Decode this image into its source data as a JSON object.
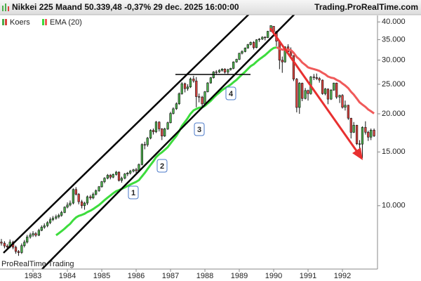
{
  "chart_data": {
    "type": "candlestick",
    "title": "Nikkei 225 Maand 50.339,48 -0,37% 29 dec. 2025 16:00:00",
    "source": "Trading.ProRealTime.com",
    "watermark": "ProRealTime Trading",
    "annotations": [
      "1",
      "2",
      "3",
      "4"
    ],
    "log_scale": true,
    "grid": false,
    "xlim": [
      1982.04,
      1993.02
    ],
    "xticks": [
      1983,
      1984,
      1985,
      1986,
      1987,
      1988,
      1989,
      1990,
      1991,
      1992
    ],
    "ylim": [
      6200,
      42000
    ],
    "yticks": [
      {
        "value": 10000,
        "label": "10.000"
      },
      {
        "value": 15000,
        "label": "15.000"
      },
      {
        "value": 20000,
        "label": "20.000"
      },
      {
        "value": 25000,
        "label": "25.000"
      },
      {
        "value": 30000,
        "label": "30.000"
      },
      {
        "value": 35000,
        "label": "35.000"
      },
      {
        "value": 40000,
        "label": "40.000"
      }
    ],
    "x": [
      1982.08,
      1982.17,
      1982.25,
      1982.33,
      1982.42,
      1982.5,
      1982.58,
      1982.67,
      1982.75,
      1982.83,
      1982.92,
      1983,
      1983.08,
      1983.17,
      1983.25,
      1983.33,
      1983.42,
      1983.5,
      1983.58,
      1983.67,
      1983.75,
      1983.83,
      1983.92,
      1984,
      1984.08,
      1984.17,
      1984.25,
      1984.33,
      1984.42,
      1984.5,
      1984.58,
      1984.67,
      1984.75,
      1984.83,
      1984.92,
      1985,
      1985.08,
      1985.17,
      1985.25,
      1985.33,
      1985.42,
      1985.5,
      1985.58,
      1985.67,
      1985.75,
      1985.83,
      1985.92,
      1986,
      1986.08,
      1986.17,
      1986.25,
      1986.33,
      1986.42,
      1986.5,
      1986.58,
      1986.67,
      1986.75,
      1986.83,
      1986.92,
      1987,
      1987.08,
      1987.17,
      1987.25,
      1987.33,
      1987.42,
      1987.5,
      1987.58,
      1987.67,
      1987.75,
      1987.83,
      1987.92,
      1988,
      1988.08,
      1988.17,
      1988.25,
      1988.33,
      1988.42,
      1988.5,
      1988.58,
      1988.67,
      1988.75,
      1988.83,
      1988.92,
      1989,
      1989.08,
      1989.17,
      1989.25,
      1989.33,
      1989.42,
      1989.5,
      1989.58,
      1989.67,
      1989.75,
      1989.83,
      1989.92,
      1990,
      1990.08,
      1990.17,
      1990.25,
      1990.33,
      1990.42,
      1990.5,
      1990.58,
      1990.67,
      1990.75,
      1990.83,
      1990.92,
      1991,
      1991.08,
      1991.17,
      1991.25,
      1991.33,
      1991.42,
      1991.5,
      1991.58,
      1991.67,
      1991.75,
      1991.83,
      1991.92,
      1992,
      1992.08,
      1992.17,
      1992.25,
      1992.33,
      1992.42,
      1992.5,
      1992.58,
      1992.67,
      1992.75,
      1992.83,
      1992.92
    ],
    "series": [
      {
        "name": "Koers",
        "up_color": "#4cae4c",
        "down_color": "#d9423e",
        "outline_color": "#111111",
        "open": [
          7600,
          7540,
          7380,
          7320,
          7600,
          7310,
          7080,
          7020,
          7400,
          7600,
          7900,
          8020,
          8100,
          8000,
          8300,
          8500,
          8600,
          8800,
          9000,
          9100,
          9200,
          9300,
          9500,
          9890,
          10050,
          10200,
          11300,
          10900,
          10300,
          10000,
          10200,
          10700,
          10600,
          10900,
          11200,
          11540,
          11990,
          12300,
          12580,
          12400,
          12660,
          12880,
          12100,
          12300,
          12700,
          12790,
          12980,
          13110,
          13020,
          13640,
          15860,
          15830,
          16650,
          17650,
          17470,
          18790,
          17850,
          16910,
          17850,
          18700,
          20050,
          20770,
          21570,
          23270,
          25110,
          24180,
          24490,
          26030,
          25630,
          22770,
          22690,
          21560,
          23620,
          25240,
          26260,
          27430,
          27420,
          27770,
          28020,
          27370,
          27920,
          28180,
          29580,
          30160,
          31580,
          31990,
          32840,
          33710,
          34270,
          32950,
          34950,
          35140,
          35640,
          35550,
          37270,
          38710,
          37190,
          34590,
          29980,
          29580,
          33130,
          31940,
          31040,
          25980,
          20980,
          25190,
          22450,
          23850,
          23290,
          26410,
          26290,
          26110,
          25790,
          23290,
          24120,
          22340,
          23920,
          25220,
          22690,
          22980,
          21010,
          21340,
          19350,
          17390,
          18350,
          15950,
          15910,
          18060,
          17400,
          16770,
          17680
        ],
        "high": [
          7780,
          7650,
          7480,
          7750,
          7680,
          7400,
          7150,
          7520,
          7720,
          8020,
          8150,
          8250,
          8200,
          8400,
          8620,
          8750,
          8900,
          9150,
          9250,
          9350,
          9420,
          9620,
          9950,
          10250,
          10400,
          11400,
          11500,
          11000,
          10450,
          10300,
          10800,
          10850,
          11050,
          11300,
          11600,
          12050,
          12400,
          12700,
          12700,
          12750,
          13000,
          12950,
          12450,
          12800,
          12900,
          13100,
          13200,
          13300,
          13750,
          16000,
          16200,
          16800,
          17800,
          17900,
          18950,
          18900,
          17950,
          18000,
          18850,
          20300,
          21000,
          21800,
          23500,
          25400,
          25300,
          25000,
          26300,
          26650,
          26400,
          23300,
          22900,
          23750,
          25400,
          26400,
          27600,
          27800,
          28000,
          28200,
          28200,
          28100,
          28300,
          29700,
          30300,
          31700,
          32300,
          33000,
          33900,
          34500,
          34600,
          35100,
          35400,
          35900,
          35900,
          37400,
          38960,
          38710,
          37400,
          34800,
          30800,
          33300,
          33800,
          33000,
          31100,
          26200,
          25400,
          25300,
          24300,
          24000,
          26600,
          27000,
          27100,
          26400,
          25900,
          24300,
          24200,
          24100,
          25300,
          25300,
          23100,
          23200,
          22100,
          21400,
          19400,
          18800,
          18400,
          16400,
          18200,
          18900,
          17600,
          17900,
          17900
        ],
        "low": [
          7400,
          7250,
          7150,
          7260,
          7200,
          6960,
          6850,
          6950,
          7300,
          7520,
          7800,
          7900,
          7900,
          7950,
          8250,
          8400,
          8500,
          8700,
          8900,
          9000,
          9080,
          9200,
          9450,
          9800,
          9950,
          10100,
          10800,
          10100,
          9800,
          9700,
          10050,
          10450,
          10500,
          10800,
          11100,
          11450,
          11850,
          12200,
          12200,
          12300,
          12550,
          12000,
          11900,
          12200,
          12500,
          12650,
          12850,
          12800,
          12900,
          13550,
          15300,
          15600,
          16500,
          17100,
          17300,
          17500,
          16400,
          16800,
          17700,
          18600,
          19900,
          20600,
          21400,
          23100,
          23500,
          23800,
          24300,
          25300,
          21000,
          21800,
          21100,
          21200,
          23500,
          25100,
          26100,
          27000,
          27200,
          27500,
          27100,
          27000,
          27700,
          28000,
          29400,
          30000,
          31300,
          31800,
          32700,
          33500,
          32500,
          32800,
          34400,
          34900,
          34800,
          35400,
          37100,
          36900,
          33300,
          28000,
          27250,
          29400,
          31500,
          30900,
          25600,
          20220,
          20000,
          22000,
          22300,
          22100,
          23100,
          25800,
          25800,
          25300,
          23100,
          23000,
          21500,
          22200,
          23800,
          22400,
          21700,
          20800,
          20500,
          19100,
          16600,
          17300,
          15800,
          15200,
          14300,
          17100,
          16300,
          16400,
          16800
        ],
        "close": [
          7540,
          7380,
          7320,
          7600,
          7310,
          7080,
          7020,
          7400,
          7600,
          7900,
          8020,
          8100,
          8000,
          8300,
          8500,
          8600,
          8800,
          9000,
          9100,
          9200,
          9300,
          9500,
          9890,
          10050,
          10200,
          11300,
          10900,
          10300,
          10000,
          10200,
          10700,
          10600,
          10900,
          11200,
          11540,
          11990,
          12300,
          12580,
          12400,
          12660,
          12880,
          12100,
          12300,
          12700,
          12790,
          12980,
          13110,
          13020,
          13640,
          15860,
          15830,
          16650,
          17650,
          17470,
          18790,
          17850,
          16910,
          17850,
          18700,
          20050,
          20770,
          21570,
          23270,
          25110,
          24180,
          24490,
          26030,
          25630,
          22770,
          22690,
          21560,
          23620,
          25240,
          26260,
          27430,
          27420,
          27770,
          28020,
          27370,
          27920,
          28180,
          29580,
          30160,
          31580,
          31990,
          32840,
          33710,
          34270,
          32950,
          34950,
          35140,
          35640,
          35550,
          37270,
          38920,
          37190,
          34590,
          29980,
          29580,
          33130,
          31940,
          31040,
          25980,
          20980,
          25190,
          22450,
          23850,
          23290,
          26410,
          26290,
          26110,
          25790,
          23290,
          24120,
          22340,
          23920,
          25220,
          22690,
          22980,
          21010,
          21340,
          19350,
          17390,
          18350,
          15950,
          15910,
          18060,
          17400,
          16770,
          17680,
          16930
        ]
      },
      {
        "name": "EMA (20)",
        "color": "#3ddc3d",
        "down_color": "#f05a5a",
        "values": [
          null,
          null,
          null,
          null,
          null,
          null,
          null,
          null,
          null,
          null,
          null,
          null,
          null,
          null,
          null,
          null,
          null,
          null,
          null,
          8000,
          8120,
          8250,
          8410,
          8570,
          8720,
          8970,
          9150,
          9260,
          9330,
          9410,
          9530,
          9630,
          9750,
          9890,
          10050,
          10230,
          10430,
          10630,
          10800,
          10980,
          11160,
          11250,
          11350,
          11480,
          11600,
          11730,
          11860,
          11970,
          12130,
          12480,
          12800,
          13170,
          13600,
          13970,
          14430,
          14750,
          14960,
          15230,
          15560,
          15990,
          16440,
          16930,
          17530,
          18250,
          18810,
          19350,
          19990,
          20530,
          20740,
          20930,
          20990,
          21240,
          21620,
          22060,
          22570,
          23030,
          23480,
          23910,
          24240,
          24590,
          24930,
          25370,
          25830,
          26380,
          26910,
          27470,
          28060,
          28650,
          29060,
          29620,
          30140,
          30660,
          31130,
          31710,
          32400,
          32860,
          33020,
          32730,
          32430,
          32500,
          32450,
          32320,
          31720,
          30700,
          30180,
          29450,
          28920,
          28390,
          28200,
          28020,
          27840,
          27650,
          27240,
          26940,
          26500,
          26260,
          26160,
          25830,
          25560,
          25130,
          24770,
          24260,
          23610,
          23110,
          22430,
          21810,
          21450,
          21070,
          20660,
          20380,
          20050
        ]
      }
    ]
  }
}
